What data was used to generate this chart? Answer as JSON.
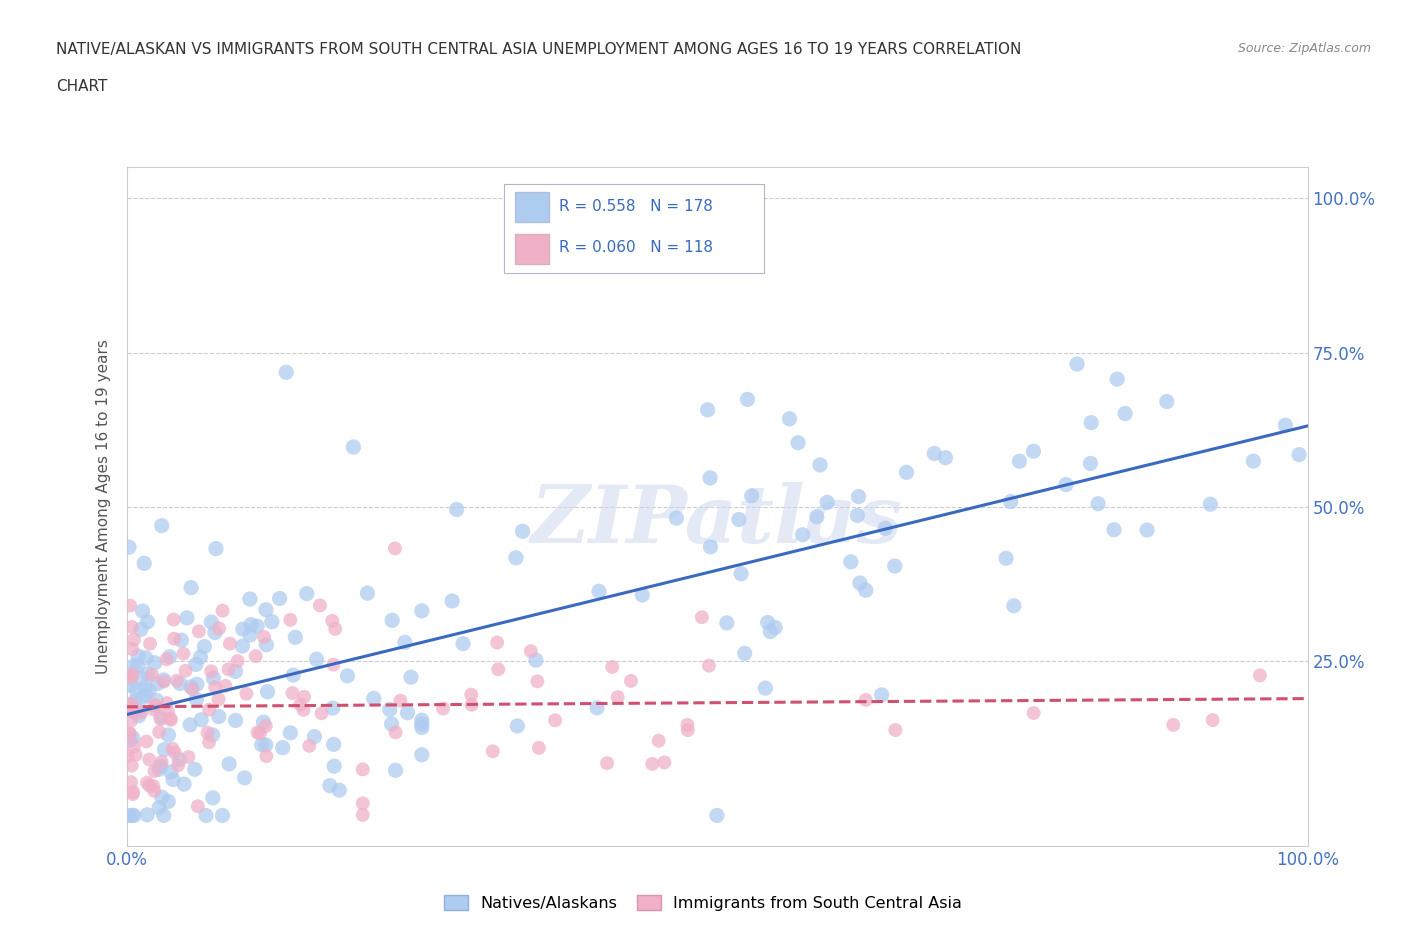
{
  "title_line1": "NATIVE/ALASKAN VS IMMIGRANTS FROM SOUTH CENTRAL ASIA UNEMPLOYMENT AMONG AGES 16 TO 19 YEARS CORRELATION",
  "title_line2": "CHART",
  "source_text": "Source: ZipAtlas.com",
  "ylabel": "Unemployment Among Ages 16 to 19 years",
  "xlim": [
    0.0,
    1.0
  ],
  "ylim": [
    -0.05,
    1.05
  ],
  "ytick_positions": [
    0.25,
    0.5,
    0.75,
    1.0
  ],
  "ytick_labels": [
    "25.0%",
    "50.0%",
    "75.0%",
    "100.0%"
  ],
  "native_color": "#aecbf0",
  "immigrant_color": "#f0b0c8",
  "native_line_color": "#3a6abf",
  "immigrant_line_color": "#d05070",
  "legend_native_color": "#aecbf0",
  "legend_immigrant_color": "#f0b0c8",
  "R_native": 0.558,
  "N_native": 178,
  "R_immigrant": 0.06,
  "N_immigrant": 118,
  "background_color": "#ffffff",
  "grid_color": "#cccccc",
  "native_line_start_y": 0.155,
  "native_line_end_y": 0.615,
  "immigrant_line_start_y": 0.175,
  "immigrant_line_end_y": 0.225,
  "watermark_text": "ZIPatlas",
  "seed": 42
}
